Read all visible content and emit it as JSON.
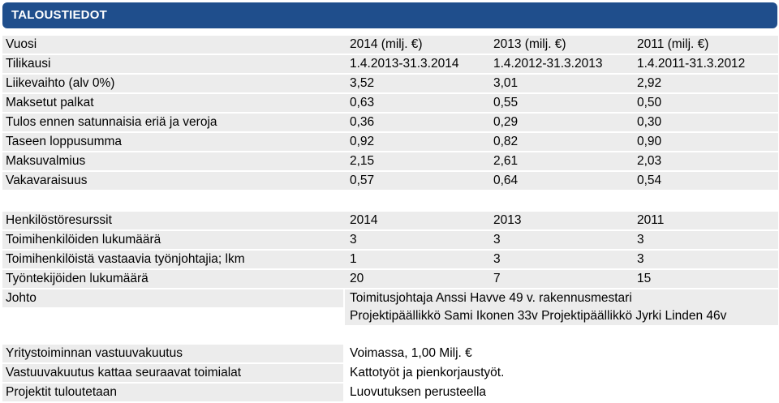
{
  "header": {
    "title": "TALOUSTIEDOT"
  },
  "finance": {
    "rows": [
      [
        "Vuosi",
        "2014 (milj. €)",
        "2013 (milj. €)",
        "2011 (milj. €)"
      ],
      [
        "Tilikausi",
        "1.4.2013-31.3.2014",
        "1.4.2012-31.3.2013",
        "1.4.2011-31.3.2012"
      ],
      [
        "Liikevaihto (alv 0%)",
        "3,52",
        "3,01",
        "2,92"
      ],
      [
        "Maksetut palkat",
        "0,63",
        "0,55",
        "0,50"
      ],
      [
        "Tulos ennen satunnaisia eriä ja veroja",
        "0,36",
        "0,29",
        "0,30"
      ],
      [
        "Taseen loppusumma",
        "0,92",
        "0,82",
        "0,90"
      ],
      [
        "Maksuvalmius",
        "2,15",
        "2,61",
        "2,03"
      ],
      [
        "Vakavaraisuus",
        "0,57",
        "0,64",
        "0,54"
      ]
    ]
  },
  "staff": {
    "rows": [
      [
        "Henkilöstöresurssit",
        "2014",
        "2013",
        "2011"
      ],
      [
        "Toimihenkilöiden lukumäärä",
        "3",
        "3",
        "3"
      ],
      [
        "Toimihenkilöistä vastaavia työnjohtajia; lkm",
        "1",
        "3",
        "3"
      ],
      [
        "Työntekijöiden lukumäärä",
        "20",
        "7",
        "15"
      ]
    ],
    "management": {
      "label": "Johto",
      "line1": "Toimitusjohtaja Anssi Havve 49 v. rakennusmestari",
      "line2": "Projektipäällikkö Sami Ikonen 33v Projektipäällikkö Jyrki Linden 46v"
    }
  },
  "insurance": {
    "rows": [
      [
        "Yritystoiminnan vastuuvakuutus",
        "Voimassa, 1,00 Milj. €"
      ],
      [
        "Vastuuvakuutus kattaa seuraavat toimialat",
        "Kattotyöt ja pienkorjaustyöt."
      ],
      [
        "Projektit tuloutetaan",
        "Luovutuksen perusteella"
      ]
    ]
  }
}
